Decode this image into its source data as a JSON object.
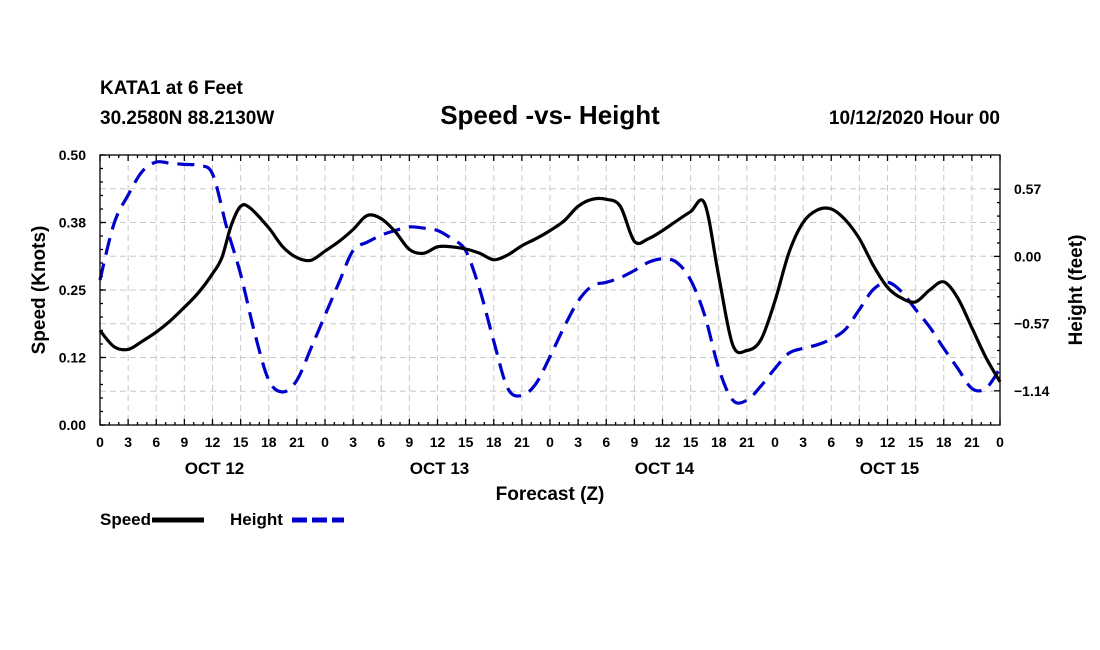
{
  "header": {
    "station": "KATA1 at 6 Feet",
    "coords": "30.2580N 88.2130W",
    "title": "Speed -vs- Height",
    "run": "10/12/2020 Hour 00"
  },
  "chart_data": {
    "type": "line",
    "title": "Speed -vs- Height",
    "xlabel": "Forecast (Z)",
    "ylabel": "Speed (Knots)",
    "y2label": "Height (feet)",
    "xlim": [
      0,
      96
    ],
    "ylim": [
      0,
      0.5
    ],
    "y2lim": [
      -1.43,
      0.86
    ],
    "grid": true,
    "x_ticks": [
      0,
      3,
      6,
      9,
      12,
      15,
      18,
      21,
      24,
      27,
      30,
      33,
      36,
      39,
      42,
      45,
      48,
      51,
      54,
      57,
      60,
      63,
      66,
      69,
      72,
      75,
      78,
      81,
      84,
      87,
      90,
      93,
      96
    ],
    "x_tick_labels": [
      "0",
      "3",
      "6",
      "9",
      "12",
      "15",
      "18",
      "21",
      "0",
      "3",
      "6",
      "9",
      "12",
      "15",
      "18",
      "21",
      "0",
      "3",
      "6",
      "9",
      "12",
      "15",
      "18",
      "21",
      "0",
      "3",
      "6",
      "9",
      "12",
      "15",
      "18",
      "21",
      "0"
    ],
    "date_labels": [
      {
        "hour": 12,
        "label": "OCT 12"
      },
      {
        "hour": 36,
        "label": "OCT 13"
      },
      {
        "hour": 60,
        "label": "OCT 14"
      },
      {
        "hour": 84,
        "label": "OCT 15"
      }
    ],
    "y_ticks": [
      0.0,
      0.125,
      0.25,
      0.375,
      0.5
    ],
    "y_tick_labels": [
      "0.00",
      "0.12",
      "0.25",
      "0.38",
      "0.50"
    ],
    "y2_ticks": [
      -1.14,
      -0.57,
      0.0,
      0.57
    ],
    "y2_tick_labels": [
      "−1.14",
      "−0.57",
      "0.00",
      "0.57"
    ],
    "series": [
      {
        "name": "Speed",
        "axis": "left",
        "color": "#000000",
        "dash": "solid",
        "x": [
          0,
          1.5,
          3,
          4.5,
          6,
          7.5,
          9,
          10.5,
          12,
          13,
          14,
          15,
          16,
          18,
          19.5,
          21,
          22.5,
          24,
          25.5,
          27,
          28.5,
          30,
          31.5,
          33,
          34.5,
          36,
          37.5,
          39,
          40.5,
          42,
          43.5,
          45,
          46.5,
          48,
          49.5,
          51,
          52.5,
          54,
          55.5,
          57,
          58.5,
          60,
          61.5,
          63,
          64.5,
          66,
          67.5,
          69,
          70.5,
          72,
          73.5,
          75,
          76.5,
          78,
          79.5,
          81,
          82.5,
          84,
          85.5,
          87,
          88.5,
          90,
          91.5,
          93,
          94.5,
          96
        ],
        "y": [
          0.175,
          0.145,
          0.14,
          0.155,
          0.172,
          0.193,
          0.218,
          0.245,
          0.28,
          0.31,
          0.37,
          0.405,
          0.402,
          0.365,
          0.33,
          0.31,
          0.305,
          0.322,
          0.34,
          0.362,
          0.388,
          0.382,
          0.358,
          0.325,
          0.318,
          0.33,
          0.33,
          0.326,
          0.318,
          0.306,
          0.315,
          0.332,
          0.345,
          0.36,
          0.378,
          0.405,
          0.418,
          0.418,
          0.405,
          0.34,
          0.345,
          0.36,
          0.378,
          0.395,
          0.41,
          0.275,
          0.148,
          0.138,
          0.158,
          0.23,
          0.32,
          0.375,
          0.398,
          0.4,
          0.38,
          0.345,
          0.295,
          0.255,
          0.235,
          0.228,
          0.25,
          0.265,
          0.235,
          0.18,
          0.125,
          0.08
        ]
      },
      {
        "name": "Height",
        "axis": "right",
        "color": "#0000cc",
        "dash": "dashed",
        "x": [
          0,
          1.5,
          3,
          4.5,
          6,
          7.5,
          9,
          10.5,
          12,
          13.5,
          15,
          16.5,
          18,
          19.5,
          21,
          22.5,
          24,
          25.5,
          27,
          28.5,
          30,
          31.5,
          33,
          34.5,
          36,
          37.5,
          39,
          40.5,
          42,
          43.5,
          45,
          46.5,
          48,
          49.5,
          51,
          52.5,
          54,
          55.5,
          57,
          58.5,
          60,
          61.5,
          63,
          64.5,
          66,
          67.5,
          69,
          70.5,
          72,
          73.5,
          75,
          76.5,
          78,
          79.5,
          81,
          82.5,
          84,
          85.5,
          87,
          88.5,
          90,
          91.5,
          93,
          94.5,
          96
        ],
        "y": [
          -0.2,
          0.28,
          0.52,
          0.72,
          0.8,
          0.79,
          0.78,
          0.77,
          0.7,
          0.25,
          -0.15,
          -0.65,
          -1.05,
          -1.15,
          -1.05,
          -0.78,
          -0.5,
          -0.22,
          0.05,
          0.12,
          0.18,
          0.22,
          0.25,
          0.24,
          0.22,
          0.15,
          0.05,
          -0.28,
          -0.72,
          -1.12,
          -1.18,
          -1.08,
          -0.85,
          -0.6,
          -0.38,
          -0.25,
          -0.22,
          -0.18,
          -0.12,
          -0.05,
          -0.02,
          -0.05,
          -0.2,
          -0.5,
          -0.95,
          -1.22,
          -1.22,
          -1.1,
          -0.95,
          -0.82,
          -0.78,
          -0.75,
          -0.7,
          -0.62,
          -0.45,
          -0.28,
          -0.22,
          -0.3,
          -0.45,
          -0.6,
          -0.78,
          -0.95,
          -1.12,
          -1.12,
          -0.95
        ]
      }
    ],
    "legend": [
      {
        "label": "Speed",
        "color": "#000000",
        "dash": "solid"
      },
      {
        "label": "Height",
        "color": "#0000cc",
        "dash": "dashed"
      }
    ],
    "legend_position": "bottom-left"
  }
}
